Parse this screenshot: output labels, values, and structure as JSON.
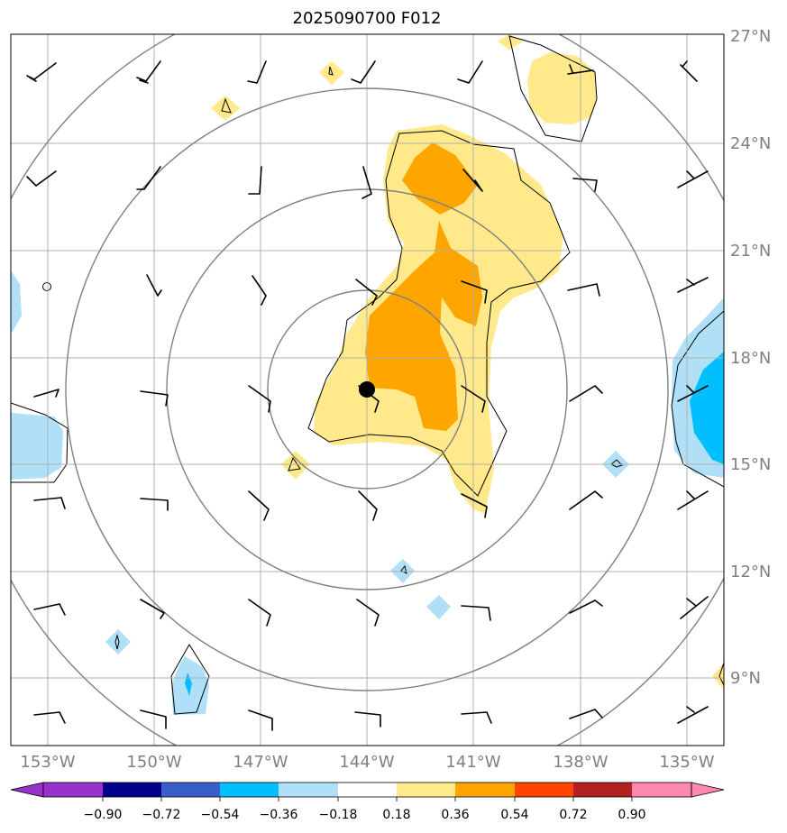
{
  "title": "2025090700 F012",
  "lat_labels": [
    "27°N",
    "24°N",
    "21°N",
    "18°N",
    "15°N",
    "12°N",
    "9°N"
  ],
  "lon_labels": [
    "153°W",
    "150°W",
    "147°W",
    "144°W",
    "141°W",
    "138°W",
    "135°W"
  ],
  "colorbar": {
    "ticks": [
      "−0.90",
      "−0.72",
      "−0.54",
      "−0.36",
      "−0.18",
      "0.18",
      "0.36",
      "0.54",
      "0.72",
      "0.90"
    ],
    "colors": [
      "#9932cc",
      "#00008b",
      "#3a5fcd",
      "#00bfff",
      "#b0e0f8",
      "#ffffff",
      "#ffe98a",
      "#ffa500",
      "#ff4500",
      "#b22222",
      "#ff88b0"
    ]
  },
  "colors": {
    "pos_light": "#ffe98a",
    "pos_mid": "#ffa500",
    "neg_light": "#b0e0f8",
    "neg_mid": "#00bfff",
    "grid": "#b0b0b0",
    "ring": "#808080"
  },
  "center_marker": "storm-center"
}
